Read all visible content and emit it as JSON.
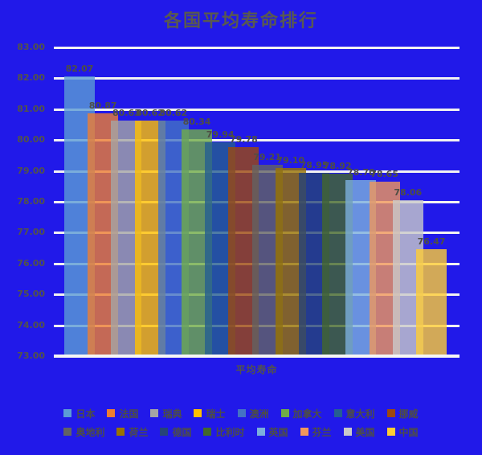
{
  "title": "各国平均寿命排行",
  "colors": {
    "background": "#2119E9",
    "gridline": "#F2F2F2",
    "axis_text": "#53534B",
    "label_text": "#4E4E44",
    "title_text": "#595951"
  },
  "chart_data": {
    "type": "bar",
    "title": "各国平均寿命排行",
    "xlabel": "平均寿命",
    "ylabel": "",
    "categories": [
      "平均寿命"
    ],
    "ylim": [
      73,
      83
    ],
    "ytick_step": 1,
    "yticks": [
      "83.00",
      "82.00",
      "81.00",
      "80.00",
      "79.00",
      "78.00",
      "77.00",
      "76.00",
      "75.00",
      "74.00",
      "73.00"
    ],
    "grid": true,
    "legend_position": "bottom",
    "legend_rows": 2,
    "bar_opacity": 0.8,
    "series": [
      {
        "name": "日本",
        "value": 82.07,
        "label": "82.07",
        "color": "#5B9BD5"
      },
      {
        "name": "法国",
        "value": 80.87,
        "label": "80.87",
        "color": "#ED7D31"
      },
      {
        "name": "瑞典",
        "value": 80.63,
        "label": "80.63",
        "color": "#A5A5A5"
      },
      {
        "name": "瑞士",
        "value": 80.62,
        "label": "80.62",
        "color": "#FFC000"
      },
      {
        "name": "澳洲",
        "value": 80.62,
        "label": "80.62",
        "color": "#4472C4"
      },
      {
        "name": "加拿大",
        "value": 80.34,
        "label": "80.34",
        "color": "#70AD47"
      },
      {
        "name": "意大利",
        "value": 79.94,
        "label": "79.94",
        "color": "#255E91"
      },
      {
        "name": "挪威",
        "value": 79.78,
        "label": "79.78",
        "color": "#9E480E"
      },
      {
        "name": "奥地利",
        "value": 79.21,
        "label": "79.21",
        "color": "#636363"
      },
      {
        "name": "荷兰",
        "value": 79.1,
        "label": "79.10",
        "color": "#997300"
      },
      {
        "name": "德国",
        "value": 78.95,
        "label": "78.95",
        "color": "#264478"
      },
      {
        "name": "比利时",
        "value": 78.92,
        "label": "78.92",
        "color": "#43682B"
      },
      {
        "name": "英国",
        "value": 78.7,
        "label": "78.70",
        "color": "#7CAFDD"
      },
      {
        "name": "芬兰",
        "value": 78.65,
        "label": "78.65",
        "color": "#F1975A"
      },
      {
        "name": "美国",
        "value": 78.06,
        "label": "78.06",
        "color": "#C9C9C9"
      },
      {
        "name": "中国",
        "value": 76.47,
        "label": "76.47",
        "color": "#FFCD33"
      }
    ]
  }
}
